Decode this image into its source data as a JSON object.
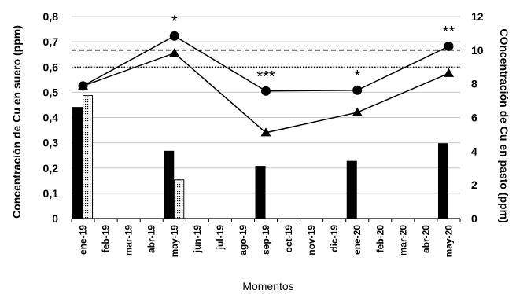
{
  "chart_data": {
    "type": "bar+line",
    "categories": [
      "ene-19",
      "feb-19",
      "mar-19",
      "abr-19",
      "may-19",
      "jun-19",
      "jul-19",
      "ago-19",
      "sep-19",
      "oct-19",
      "nov-19",
      "dic-19",
      "ene-20",
      "feb-20",
      "mar-20",
      "abr-20",
      "may-20"
    ],
    "xlabel": "Momentos",
    "ylabel_left": "Concentración de Cu en suero (ppm)",
    "ylabel_right": "COncentración de Cu en pasto (ppm)",
    "ylim_left": [
      0,
      0.8
    ],
    "yticks_left": [
      "0",
      "0,1",
      "0,2",
      "0,3",
      "0,4",
      "0,5",
      "0,6",
      "0,7",
      "0,8"
    ],
    "ylim_right": [
      0,
      12
    ],
    "yticks_right": [
      "0",
      "2",
      "4",
      "6",
      "8",
      "10",
      "12"
    ],
    "grid": "horizontal",
    "bar_series": [
      {
        "axis": "right",
        "fill": "#000000",
        "values": [
          6.6,
          null,
          null,
          null,
          4.0,
          null,
          null,
          null,
          3.1,
          null,
          null,
          null,
          3.4,
          null,
          null,
          null,
          4.45
        ]
      },
      {
        "axis": "right",
        "fill": "dotted",
        "values": [
          7.3,
          null,
          null,
          null,
          2.3,
          null,
          null,
          null,
          null,
          null,
          null,
          null,
          null,
          null,
          null,
          null,
          null
        ]
      }
    ],
    "line_series": [
      {
        "axis": "left",
        "marker": "circle",
        "values": [
          0.525,
          null,
          null,
          null,
          0.723,
          null,
          null,
          null,
          0.505,
          null,
          null,
          null,
          0.508,
          null,
          null,
          null,
          0.682
        ]
      },
      {
        "axis": "left",
        "marker": "triangle",
        "values": [
          0.525,
          null,
          null,
          null,
          0.655,
          null,
          null,
          null,
          0.34,
          null,
          null,
          null,
          0.42,
          null,
          null,
          null,
          0.575
        ]
      }
    ],
    "reference_lines": [
      {
        "axis": "left",
        "value": 0.667,
        "style": "dashed"
      },
      {
        "axis": "left",
        "value": 0.6,
        "style": "dotted"
      }
    ],
    "annotations": [
      {
        "category": "may-19",
        "text": "*"
      },
      {
        "category": "sep-19",
        "text": "***"
      },
      {
        "category": "ene-20",
        "text": "*"
      },
      {
        "category": "may-20",
        "text": "**"
      }
    ]
  }
}
